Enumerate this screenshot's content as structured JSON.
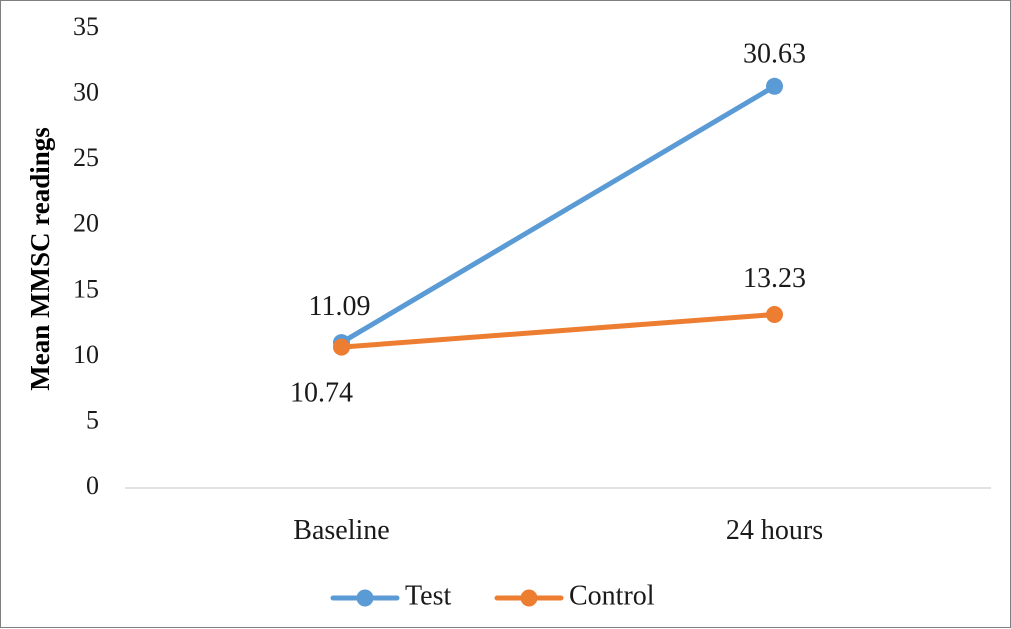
{
  "chart_data": {
    "type": "line",
    "title": "",
    "xlabel": "",
    "ylabel": "Mean MMSC readings",
    "categories": [
      "Baseline",
      "24 hours"
    ],
    "ylim": [
      0,
      35
    ],
    "yticks": [
      0,
      5,
      10,
      15,
      20,
      25,
      30,
      35
    ],
    "grid": false,
    "legend_position": "bottom",
    "series": [
      {
        "name": "Test",
        "values": [
          11.09,
          30.63
        ],
        "color": "#5b9bd5",
        "labels": [
          "11.09",
          "30.63"
        ]
      },
      {
        "name": "Control",
        "values": [
          10.74,
          13.23
        ],
        "color": "#ed7d31",
        "labels": [
          "10.74",
          "13.23"
        ]
      }
    ]
  }
}
